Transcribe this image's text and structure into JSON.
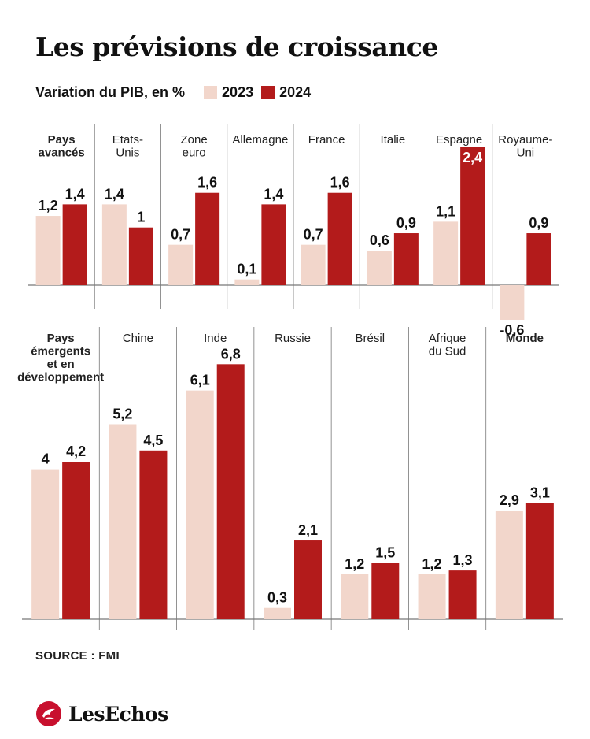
{
  "title": "Les prévisions de croissance",
  "legend": {
    "subtitle": "Variation du PIB, en %",
    "items": [
      {
        "label": "2023",
        "color": "#f2d6cb"
      },
      {
        "label": "2024",
        "color": "#b31b1b"
      }
    ]
  },
  "source": "SOURCE : FMI",
  "brand": "LesEchos",
  "colors": {
    "c2023": "#f2d6cb",
    "c2024": "#b31b1b",
    "text": "#111111",
    "axis": "#555555"
  },
  "chart_data": [
    {
      "type": "bar",
      "title": "",
      "series": [
        {
          "name": "2023",
          "values": [
            1.2,
            1.4,
            0.7,
            0.1,
            0.7,
            0.6,
            1.1,
            -0.6
          ]
        },
        {
          "name": "2024",
          "values": [
            1.4,
            1.0,
            1.6,
            1.4,
            1.6,
            0.9,
            2.4,
            0.9
          ]
        }
      ],
      "categories": [
        "Pays avancés",
        "Etats-Unis",
        "Zone euro",
        "Allemagne",
        "France",
        "Italie",
        "Espagne",
        "Royaume-Uni"
      ],
      "category_lines": [
        [
          "Pays",
          "avancés"
        ],
        [
          "Etats-",
          "Unis"
        ],
        [
          "Zone",
          "euro"
        ],
        [
          "Allemagne"
        ],
        [
          "France"
        ],
        [
          "Italie"
        ],
        [
          "Espagne"
        ],
        [
          "Royaume-",
          "Uni"
        ]
      ],
      "bold_categories": [
        "Pays avancés"
      ],
      "value_labels_2023": [
        "1,2",
        "1,4",
        "0,7",
        "0,1",
        "0,7",
        "0,6",
        "1,1",
        "-0,6"
      ],
      "value_labels_2024": [
        "1,4",
        "1",
        "1,6",
        "1,4",
        "1,6",
        "0,9",
        "2,4",
        "0,9"
      ],
      "inside_label_2024": [
        "Espagne"
      ],
      "xlabel": "",
      "ylabel": "",
      "grid": false
    },
    {
      "type": "bar",
      "title": "",
      "series": [
        {
          "name": "2023",
          "values": [
            4.0,
            5.2,
            6.1,
            0.3,
            1.2,
            1.2,
            2.9
          ]
        },
        {
          "name": "2024",
          "values": [
            4.2,
            4.5,
            6.8,
            2.1,
            1.5,
            1.3,
            3.1
          ]
        }
      ],
      "categories": [
        "Pays émergents et en développement",
        "Chine",
        "Inde",
        "Russie",
        "Brésil",
        "Afrique du Sud",
        "Monde"
      ],
      "category_lines": [
        [
          "Pays",
          "émergents",
          "et en",
          "développement"
        ],
        [
          "Chine"
        ],
        [
          "Inde"
        ],
        [
          "Russie"
        ],
        [
          "Brésil"
        ],
        [
          "Afrique",
          "du Sud"
        ],
        [
          "Monde"
        ]
      ],
      "bold_categories": [
        "Pays émergents et en développement",
        "Monde"
      ],
      "value_labels_2023": [
        "4",
        "5,2",
        "6,1",
        "0,3",
        "1,2",
        "1,2",
        "2,9"
      ],
      "value_labels_2024": [
        "4,2",
        "4,5",
        "6,8",
        "2,1",
        "1,5",
        "1,3",
        "3,1"
      ],
      "xlabel": "",
      "ylabel": "",
      "grid": false
    }
  ]
}
